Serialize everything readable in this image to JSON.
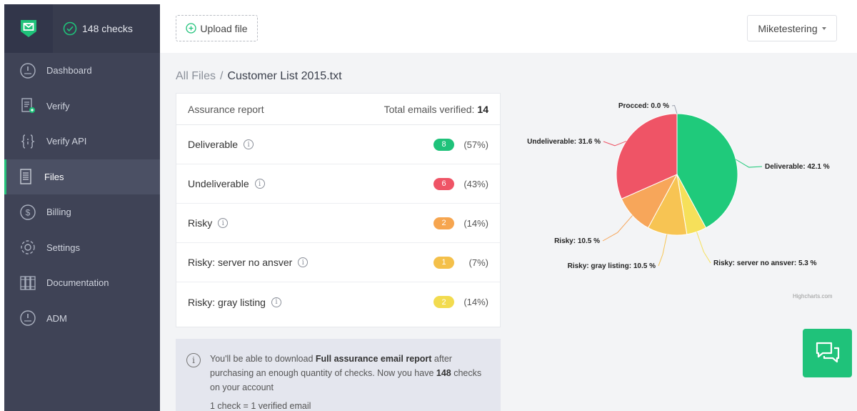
{
  "sidebar": {
    "checks_label": "148 checks",
    "items": [
      {
        "label": "Dashboard",
        "icon": "gauge-icon"
      },
      {
        "label": "Verify",
        "icon": "document-plus-icon"
      },
      {
        "label": "Verify API",
        "icon": "braces-icon"
      },
      {
        "label": "Files",
        "icon": "file-list-icon",
        "active": true
      },
      {
        "label": "Billing",
        "icon": "dollar-icon"
      },
      {
        "label": "Settings",
        "icon": "gear-icon"
      },
      {
        "label": "Documentation",
        "icon": "books-icon"
      },
      {
        "label": "ADM",
        "icon": "gauge-icon"
      }
    ]
  },
  "header": {
    "upload_label": "Upload file",
    "user_label": "Miketestering"
  },
  "breadcrumb": {
    "root": "All Files",
    "separator": "/",
    "current": "Customer List 2015.txt"
  },
  "report": {
    "title": "Assurance report",
    "total_label": "Total emails verified:",
    "total_value": "14",
    "rows": [
      {
        "label": "Deliverable",
        "count": "8",
        "percent": "(57%)",
        "color": "#1fc27a"
      },
      {
        "label": "Undeliverable",
        "count": "6",
        "percent": "(43%)",
        "color": "#ef5466"
      },
      {
        "label": "Risky",
        "count": "2",
        "percent": "(14%)",
        "color": "#f6a54f"
      },
      {
        "label": "Risky: server no ansver",
        "count": "1",
        "percent": "(7%)",
        "color": "#f4c04a"
      },
      {
        "label": "Risky: gray listing",
        "count": "2",
        "percent": "(14%)",
        "color": "#f2db4f"
      }
    ]
  },
  "notice": {
    "text_1": "You'll be able to download ",
    "bold_1": "Full assurance email report",
    "text_2": " after purchasing an enough quantity of checks. Now you have ",
    "bold_2": "148",
    "text_3": " checks on your account",
    "line_2": "1 check = 1 verified email"
  },
  "chart_data": {
    "type": "pie",
    "slices": [
      {
        "name": "Deliverable",
        "label": "Deliverable: 42.1 %",
        "value": 42.1,
        "color": "#1fca7b"
      },
      {
        "name": "Risky: server no ansver",
        "label": "Risky: server no ansver: 5.3 %",
        "value": 5.3,
        "color": "#f6e05a"
      },
      {
        "name": "Risky: gray listing",
        "label": "Risky: gray listing: 10.5 %",
        "value": 10.5,
        "color": "#f7c453"
      },
      {
        "name": "Risky",
        "label": "Risky: 10.5 %",
        "value": 10.5,
        "color": "#f7a65a"
      },
      {
        "name": "Undeliverable",
        "label": "Undeliverable: 31.6 %",
        "value": 31.6,
        "color": "#ef5466"
      },
      {
        "name": "Procced",
        "label": "Procced: 0.0 %",
        "value": 0.0,
        "color": "#9aa0ad"
      }
    ],
    "credits": "Highcharts.com"
  },
  "colors": {
    "accent": "#1fc27a",
    "sidebar_bg": "#3f4356"
  }
}
